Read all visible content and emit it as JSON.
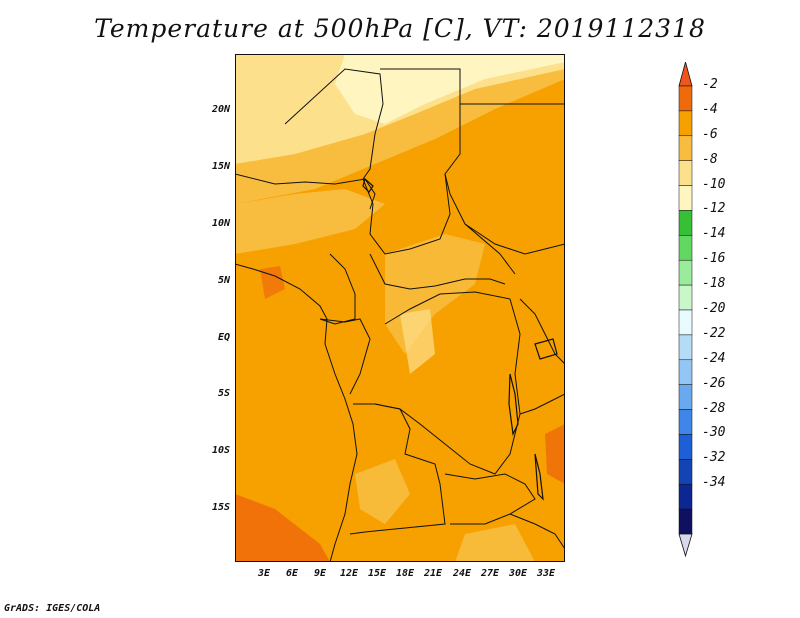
{
  "title": "Temperature at 500hPa [C], VT: 2019112318",
  "credit": "GrADS: IGES/COLA",
  "lat_ticks": [
    "20N",
    "15N",
    "10N",
    "5N",
    "EQ",
    "5S",
    "10S",
    "15S"
  ],
  "lon_ticks": [
    "3E",
    "6E",
    "9E",
    "12E",
    "15E",
    "18E",
    "21E",
    "24E",
    "27E",
    "30E",
    "33E"
  ],
  "colorbar": {
    "labels": [
      "-2",
      "-4",
      "-6",
      "-8",
      "-10",
      "-12",
      "-14",
      "-16",
      "-18",
      "-20",
      "-22",
      "-24",
      "-26",
      "-28",
      "-30",
      "-32",
      "-34"
    ],
    "colors": [
      "#f0561c",
      "#ef6a0b",
      "#f6a100",
      "#f8bd3f",
      "#fde08c",
      "#fef5c0",
      "#35c035",
      "#62d862",
      "#99ec99",
      "#c9f7c9",
      "#e8fbff",
      "#b5dcf7",
      "#93c6f4",
      "#69aaee",
      "#3f86e8",
      "#1e5ed6",
      "#1444b4",
      "#0c2694",
      "#101060",
      "#d8d8ee"
    ]
  },
  "map": {
    "dominant_color": "#f6a100",
    "light_band_color": "#fde08c",
    "warm_patch_color": "#ef6a0b",
    "pale_color": "#fef5c0",
    "mid_color": "#f8bd3f"
  }
}
